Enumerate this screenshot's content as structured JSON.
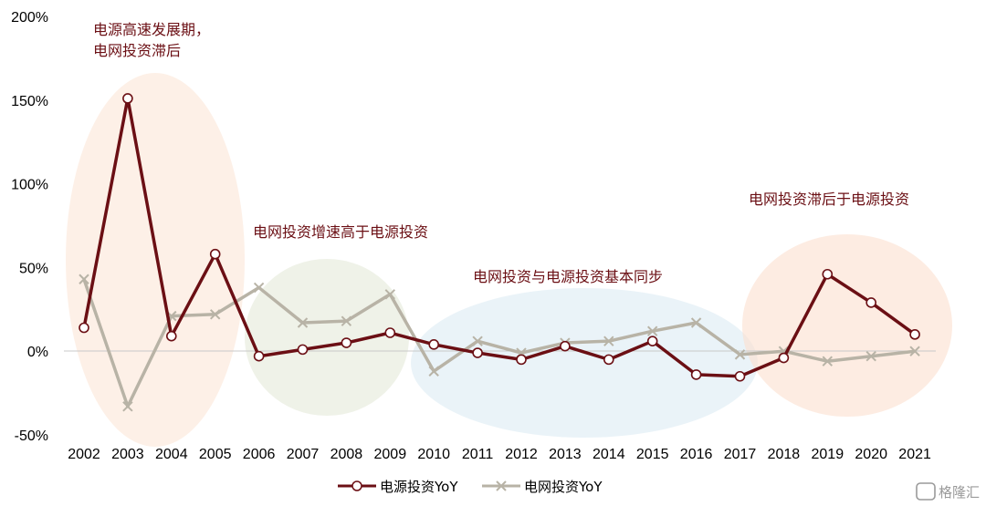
{
  "chart_data": {
    "type": "line",
    "categories": [
      "2002",
      "2003",
      "2004",
      "2005",
      "2006",
      "2007",
      "2008",
      "2009",
      "2010",
      "2011",
      "2012",
      "2013",
      "2014",
      "2015",
      "2016",
      "2017",
      "2018",
      "2019",
      "2020",
      "2021"
    ],
    "series": [
      {
        "name": "电源投资YoY",
        "color": "#6b0f14",
        "marker": "circle",
        "values": [
          14,
          151,
          9,
          58,
          -3,
          1,
          5,
          11,
          4,
          -1,
          -5,
          3,
          -5,
          6,
          -14,
          -15,
          -4,
          46,
          29,
          10
        ]
      },
      {
        "name": "电网投资YoY",
        "color": "#b8b3a6",
        "marker": "x",
        "values": [
          43,
          -33,
          21,
          22,
          38,
          17,
          18,
          34,
          -12,
          6,
          -1,
          5,
          6,
          12,
          17,
          -2,
          0,
          -6,
          -3,
          0
        ]
      }
    ],
    "ylim": [
      -50,
      200
    ],
    "yticks": [
      "200%",
      "150%",
      "100%",
      "50%",
      "0%",
      "-50%"
    ],
    "yticks_values": [
      200,
      150,
      100,
      50,
      0,
      -50
    ],
    "xlabel": "",
    "ylabel": "",
    "grid": false,
    "legend_position": "bottom",
    "annotations": [
      {
        "id": "a1",
        "lines": [
          "电源高速发展期，",
          "电网投资滞后"
        ]
      },
      {
        "id": "a2",
        "lines": [
          "电网投资增速高于电源投资"
        ]
      },
      {
        "id": "a3",
        "lines": [
          "电网投资与电源投资基本同步"
        ]
      },
      {
        "id": "a4",
        "lines": [
          "电网投资滞后于电源投资"
        ]
      }
    ]
  },
  "watermark": "格隆汇"
}
